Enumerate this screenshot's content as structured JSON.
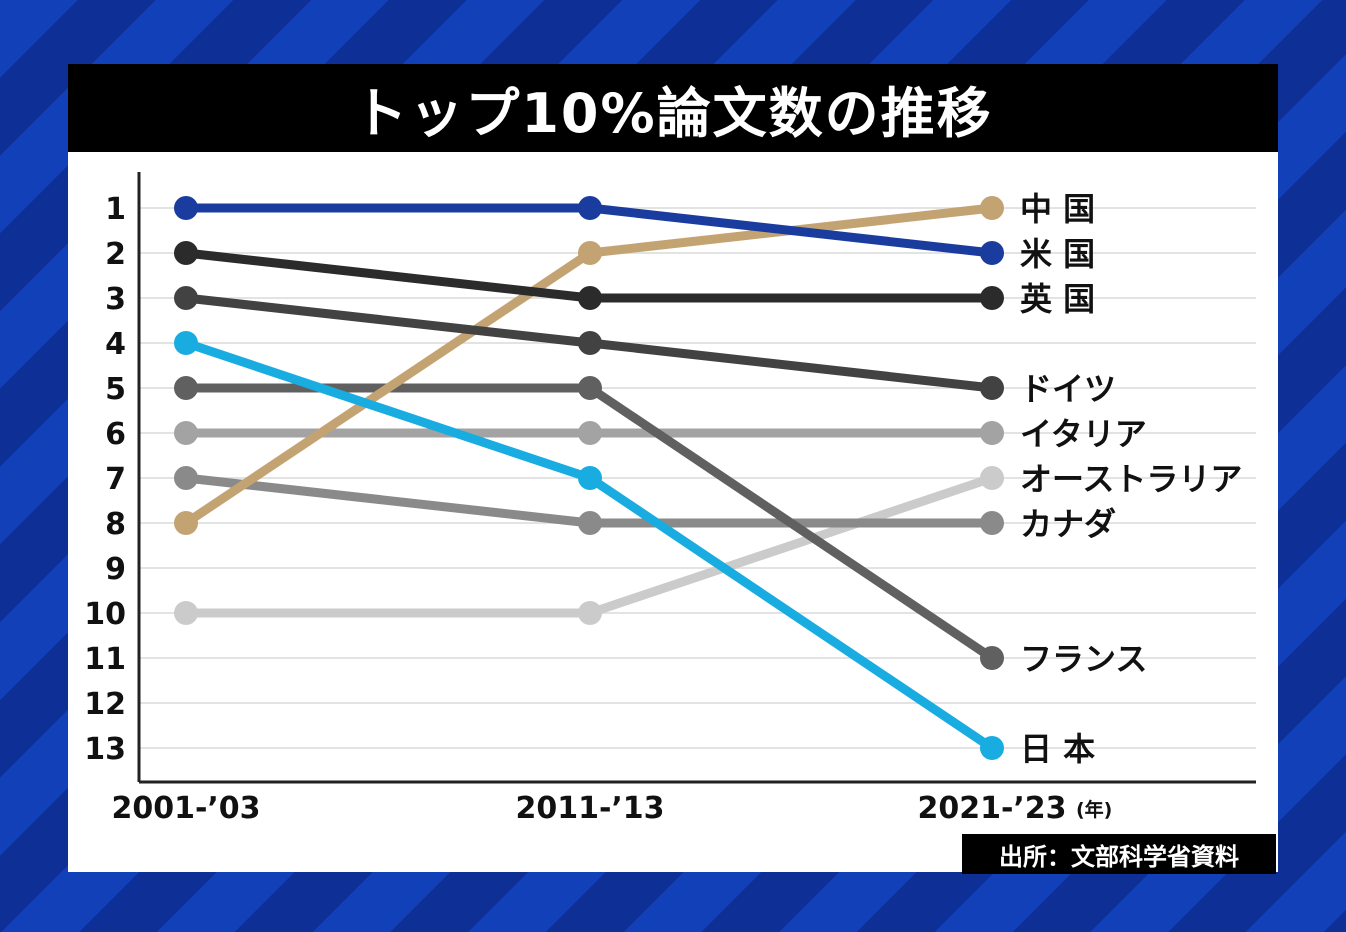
{
  "title": "トップ10%論文数の推移",
  "source": "出所：文部科学省資料",
  "colors": {
    "background_stripe_a": "#1240b8",
    "background_stripe_b": "#0d2f96",
    "grid": "#e3e3e3",
    "axis": "#222222"
  },
  "chart_data": {
    "type": "line",
    "title": "トップ10%論文数の推移",
    "x": [
      "2001-’03",
      "2011-’13",
      "2021-’23"
    ],
    "x_unit": "(年)",
    "y_ticks": [
      "1",
      "2",
      "3",
      "4",
      "5",
      "6",
      "7",
      "8",
      "9",
      "10",
      "11",
      "12",
      "13"
    ],
    "ylim": [
      1,
      13
    ],
    "y_inverted": true,
    "grid": true,
    "series": [
      {
        "name": "中 国",
        "values": [
          8,
          2,
          1
        ],
        "color": "#c4a373"
      },
      {
        "name": "米 国",
        "values": [
          1,
          1,
          2
        ],
        "color": "#1a3c9e"
      },
      {
        "name": "英 国",
        "values": [
          2,
          3,
          3
        ],
        "color": "#2b2b2b"
      },
      {
        "name": "ドイツ",
        "values": [
          3,
          4,
          5
        ],
        "color": "#424242"
      },
      {
        "name": "イタリア",
        "values": [
          6,
          6,
          6
        ],
        "color": "#a3a3a3"
      },
      {
        "name": "オーストラリア",
        "values": [
          10,
          10,
          7
        ],
        "color": "#cbcbcb"
      },
      {
        "name": "カナダ",
        "values": [
          7,
          8,
          8
        ],
        "color": "#8a8a8a"
      },
      {
        "name": "フランス",
        "values": [
          5,
          5,
          11
        ],
        "color": "#606060"
      },
      {
        "name": "日 本",
        "values": [
          4,
          7,
          13
        ],
        "color": "#19ace0"
      }
    ]
  }
}
